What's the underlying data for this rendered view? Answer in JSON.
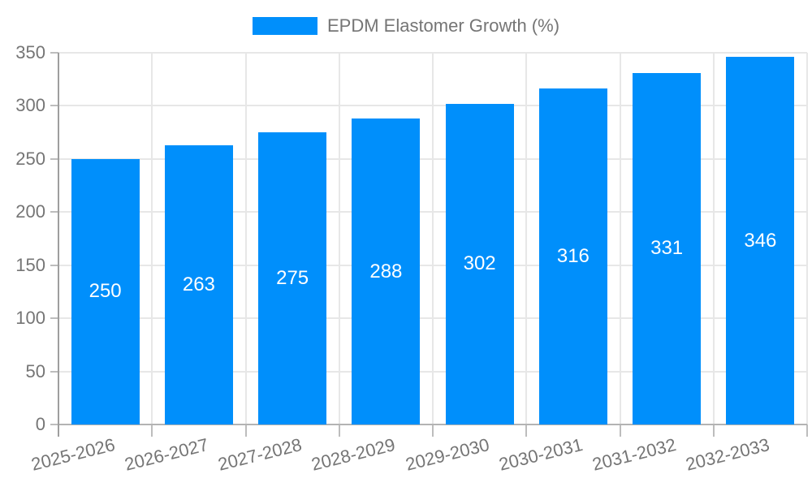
{
  "chart_data": {
    "type": "bar",
    "title": "",
    "xlabel": "",
    "ylabel": "",
    "categories": [
      "2025-2026",
      "2026-2027",
      "2027-2028",
      "2028-2029",
      "2029-2030",
      "2030-2031",
      "2031-2032",
      "2032-2033"
    ],
    "series": [
      {
        "name": "EPDM Elastomer Growth (%)",
        "color": "#008FFB",
        "values": [
          250,
          263,
          275,
          288,
          302,
          316,
          331,
          346
        ]
      }
    ],
    "value_labels": {
      "position": "inside-center",
      "color": "#ffffff"
    },
    "ylim": [
      0,
      350
    ],
    "yticks": [
      0,
      50,
      100,
      150,
      200,
      250,
      300,
      350
    ],
    "grid": {
      "horizontal": true,
      "vertical": true
    },
    "legend_position": "top",
    "x_label_rotation_deg": -14
  },
  "colors": {
    "bar": "#008FFB",
    "axis_label": "#757575",
    "legend_label": "#757575",
    "gridline": "#e7e7e7",
    "axis_line": "#9e9e9e",
    "baseline": "#b3b3b3",
    "tick": "#bdbdbd",
    "value_label": "#ffffff",
    "background": "#ffffff"
  }
}
